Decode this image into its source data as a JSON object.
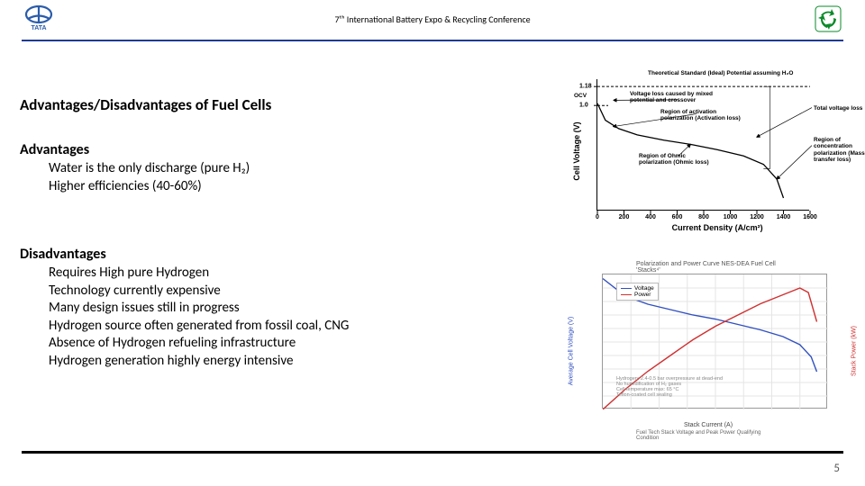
{
  "header": {
    "title": "7ᵗʰ International Battery Expo & Recycling Conference",
    "rule_color": "#1f3a93"
  },
  "slide": {
    "title": "Advantages/Disadvantages of Fuel Cells",
    "adv_heading": "Advantages",
    "adv_items": [
      "Water is the only discharge (pure H₂)",
      "Higher efficiencies (40-60%)"
    ],
    "dis_heading": "Disadvantages",
    "dis_items": [
      "Requires High pure Hydrogen",
      "Technology currently expensive",
      "Many design issues still in progress",
      "Hydrogen source often generated from fossil  coal, CNG",
      "Absence of Hydrogen refueling infrastructure",
      "Hydrogen generation highly energy intensive"
    ]
  },
  "chart1": {
    "type": "line",
    "ylabel": "Cell Voltage (V)",
    "xlabel": "Current Density (A/cm²)",
    "x_ticks": [
      0,
      200,
      400,
      600,
      800,
      1000,
      1200,
      1400,
      1600
    ],
    "xlim": [
      0,
      1600
    ],
    "y_ticks": [
      1.0,
      1.18
    ],
    "ylim": [
      0,
      1.25
    ],
    "ocv_label": "OCV",
    "ideal_line_y": 1.18,
    "curve": [
      [
        0,
        1.02
      ],
      [
        60,
        0.86
      ],
      [
        160,
        0.78
      ],
      [
        300,
        0.72
      ],
      [
        500,
        0.67
      ],
      [
        700,
        0.63
      ],
      [
        900,
        0.58
      ],
      [
        1100,
        0.52
      ],
      [
        1250,
        0.44
      ],
      [
        1350,
        0.3
      ],
      [
        1400,
        0.12
      ]
    ],
    "ideal_color": "#000000",
    "curve_color": "#000000",
    "annotations": {
      "ideal": "Theoretical Standard (Ideal) Potential assuming H₂O",
      "a1": "Voltage loss caused by mixed potential  and crossover",
      "a2": "Region of activation polarization (Activation loss)",
      "a3": "Total voltage loss",
      "a4": "Region of Ohmic polarization (Ohmic loss)",
      "a5": "Region of concentration polarization (Mass transfer loss)"
    }
  },
  "chart2": {
    "type": "dual-axis-line",
    "title": "Polarization and Power Curve NES-DEA Fuel Cell 'Stacks⁴'",
    "xlabel": "Stack Current (A)",
    "caption": "Fuel Tech Stack Voltage and Peak Power Qualifying Condition",
    "ylabel_left": "Average Cell Voltage (V)",
    "ylabel_right": "Stack Power (kW)",
    "left_color": "#3050c0",
    "right_color": "#d03030",
    "border_color": "#999999",
    "xlim": [
      0,
      400
    ],
    "left_ylim": [
      0,
      1.0
    ],
    "right_ylim": [
      0,
      120
    ],
    "legend": [
      "Voltage",
      "Power"
    ],
    "voltage_series": [
      [
        0,
        0.97
      ],
      [
        40,
        0.84
      ],
      [
        80,
        0.78
      ],
      [
        120,
        0.74
      ],
      [
        160,
        0.7
      ],
      [
        200,
        0.67
      ],
      [
        240,
        0.63
      ],
      [
        280,
        0.59
      ],
      [
        320,
        0.54
      ],
      [
        350,
        0.48
      ],
      [
        370,
        0.39
      ],
      [
        380,
        0.28
      ]
    ],
    "power_series": [
      [
        0,
        0
      ],
      [
        40,
        18
      ],
      [
        80,
        34
      ],
      [
        120,
        48
      ],
      [
        160,
        62
      ],
      [
        200,
        74
      ],
      [
        240,
        84
      ],
      [
        280,
        94
      ],
      [
        320,
        102
      ],
      [
        350,
        108
      ],
      [
        365,
        104
      ],
      [
        380,
        78
      ]
    ],
    "note_lines": [
      "Hydrogen: 2.4-0.5 bar overpressure at dead-end",
      "No humidification of H₂ gases",
      "Cell temperature max: 65 °C",
      "Teflon-coated cell sealing"
    ]
  },
  "footer": {
    "page": "5",
    "rule_color": "#000000"
  }
}
